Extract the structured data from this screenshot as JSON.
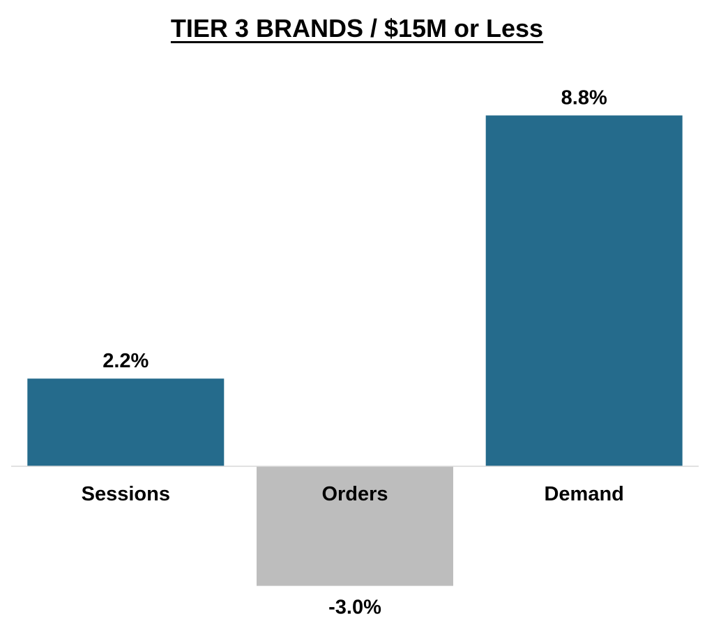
{
  "chart_data": {
    "type": "bar",
    "title": "TIER 3 BRANDS / $15M or Less",
    "xlabel": "",
    "ylabel": "",
    "categories": [
      "Sessions",
      "Orders",
      "Demand"
    ],
    "values": [
      2.2,
      -3.0,
      8.8
    ],
    "data_labels": [
      "2.2%",
      "-3.0%",
      "8.8%"
    ],
    "unit": "%",
    "ylim": [
      -3.0,
      8.8
    ],
    "grid": false,
    "legend": "none",
    "bar_colors": [
      "#256b8c",
      "#bdbdbd",
      "#256b8c"
    ],
    "axis_color": "#d9d9d9"
  }
}
